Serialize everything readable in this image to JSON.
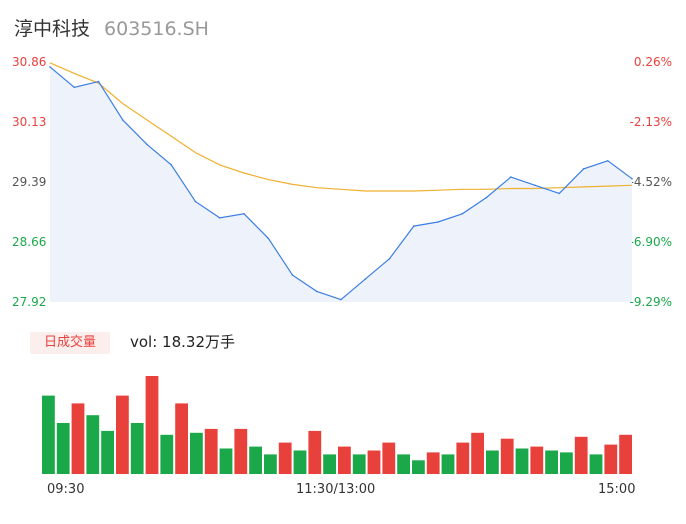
{
  "header": {
    "name": "淳中科技",
    "code": "603516.SH"
  },
  "price_axis": {
    "left_ticks": [
      "30.86",
      "30.13",
      "29.39",
      "28.66",
      "27.92"
    ],
    "right_ticks": [
      "0.26%",
      "-2.13%",
      "-4.52%",
      "-6.90%",
      "-9.29%"
    ]
  },
  "volume": {
    "label": "日成交量",
    "text": "vol: 18.32万手"
  },
  "time_axis": {
    "start": "09:30",
    "mid": "11:30/13:00",
    "end": "15:00"
  },
  "colors": {
    "up": "#e8413c",
    "down": "#1aa84a",
    "price_line": "#3d7ee6",
    "avg_line": "#f0b030",
    "area": "#eef3fb"
  },
  "chart_data": [
    {
      "type": "line",
      "ylim": [
        27.92,
        30.86
      ],
      "x": [
        "09:30",
        "09:40",
        "09:50",
        "10:00",
        "10:10",
        "10:20",
        "10:30",
        "10:40",
        "10:50",
        "11:00",
        "11:10",
        "11:20",
        "11:30/13:00",
        "13:10",
        "13:20",
        "13:30",
        "13:40",
        "13:50",
        "14:00",
        "14:10",
        "14:20",
        "14:30",
        "14:40",
        "14:50",
        "15:00"
      ],
      "series": [
        {
          "values": [
            30.8,
            30.55,
            30.62,
            30.15,
            29.85,
            29.6,
            29.15,
            28.95,
            29.0,
            28.7,
            28.25,
            28.05,
            27.95,
            28.2,
            28.45,
            28.85,
            28.9,
            29.0,
            29.2,
            29.45,
            29.35,
            29.25,
            29.55,
            29.65,
            29.43
          ]
        },
        {
          "values": [
            30.85,
            30.72,
            30.6,
            30.35,
            30.15,
            29.95,
            29.75,
            29.6,
            29.5,
            29.42,
            29.36,
            29.32,
            29.3,
            29.28,
            29.28,
            29.28,
            29.29,
            29.3,
            29.3,
            29.31,
            29.31,
            29.32,
            29.33,
            29.34,
            29.35
          ]
        }
      ]
    },
    {
      "type": "bar",
      "values": [
        4.0,
        2.6,
        3.6,
        3.0,
        2.2,
        4.0,
        2.6,
        5.0,
        2.0,
        3.6,
        2.1,
        2.3,
        1.3,
        2.3,
        1.4,
        1.0,
        1.6,
        1.2,
        2.2,
        1.0,
        1.4,
        1.0,
        1.2,
        1.6,
        1.0,
        0.7,
        1.1,
        1.0,
        1.6,
        2.1,
        1.2,
        1.8,
        1.3,
        1.4,
        1.2,
        1.1,
        1.9,
        1.0,
        1.5,
        2.0
      ]
    }
  ]
}
